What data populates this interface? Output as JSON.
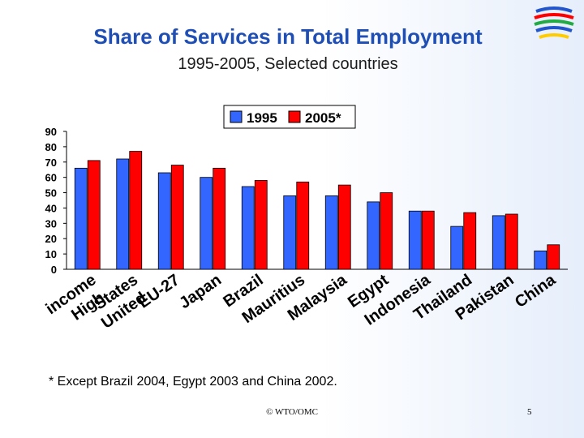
{
  "title": "Share of Services in Total Employment",
  "subtitle": "1995-2005, Selected countries",
  "footnote": "* Except Brazil 2004, Egypt 2003 and China 2002.",
  "copyright": "© WTO/OMC",
  "page_number": "5",
  "chart_data": {
    "type": "bar",
    "title": "",
    "xlabel": "",
    "ylabel": "",
    "ylim": [
      0,
      90
    ],
    "yticks": [
      "0",
      "10",
      "20",
      "30",
      "40",
      "50",
      "60",
      "70",
      "80",
      "90"
    ],
    "grid": false,
    "legend_position": "top-center",
    "categories": [
      "High income",
      "United States",
      "EU-27",
      "Japan",
      "Brazil",
      "Mauritius",
      "Malaysia",
      "Egypt",
      "Indonesia",
      "Thailand",
      "Pakistan",
      "China"
    ],
    "category_label_lines": [
      [
        "High income",
        ""
      ],
      [
        "United States",
        ""
      ],
      [
        "EU-27"
      ],
      [
        "Japan"
      ],
      [
        "Brazil"
      ],
      [
        "Mauritius"
      ],
      [
        "Malaysia"
      ],
      [
        "Egypt"
      ],
      [
        "Indonesia"
      ],
      [
        "Thailand"
      ],
      [
        "Pakistan"
      ],
      [
        "China"
      ]
    ],
    "series": [
      {
        "name": "1995",
        "color": "#3366ff",
        "values": [
          66,
          72,
          63,
          60,
          54,
          48,
          48,
          44,
          38,
          28,
          35,
          12
        ]
      },
      {
        "name": "2005*",
        "color": "#ff0000",
        "values": [
          71,
          77,
          68,
          66,
          58,
          57,
          55,
          50,
          38,
          37,
          36,
          16
        ]
      }
    ]
  }
}
